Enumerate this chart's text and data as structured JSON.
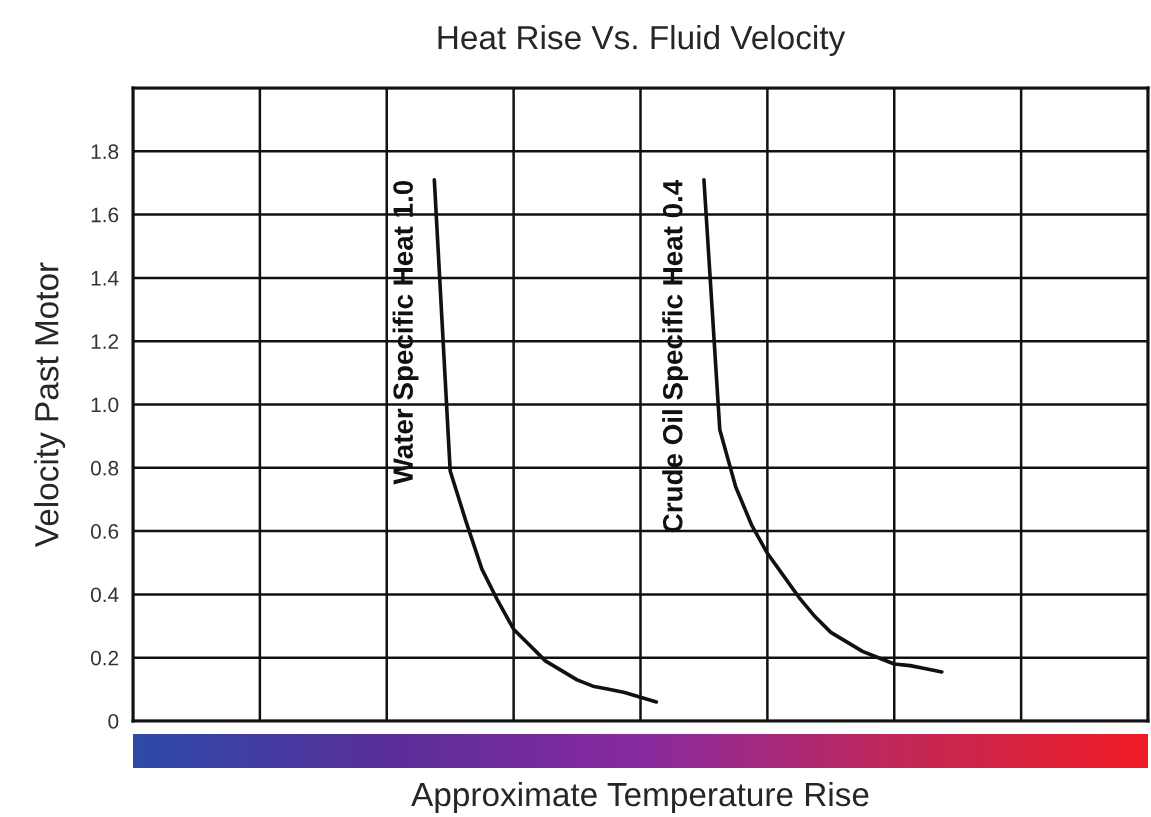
{
  "chart_data": {
    "type": "line",
    "title": "Heat Rise Vs. Fluid Velocity",
    "xlabel": "Approximate Temperature Rise",
    "ylabel": "Velocity Past Motor",
    "categories": [
      null,
      null,
      null,
      null,
      null,
      null,
      null,
      null,
      null,
      null,
      null,
      null,
      null,
      null,
      null,
      null,
      null,
      null,
      null,
      null,
      null,
      null,
      null,
      null,
      null,
      null,
      null,
      null,
      null,
      null,
      null,
      null,
      null,
      null,
      null,
      null,
      null,
      null,
      null,
      null,
      null,
      null,
      null,
      null,
      null,
      null,
      null,
      null,
      null,
      null,
      null,
      null,
      null,
      null,
      null,
      null,
      null,
      null,
      null,
      null,
      null,
      null,
      null,
      null,
      null
    ],
    "ylim": [
      0,
      2.0
    ],
    "yticks": [
      0,
      0.2,
      0.4,
      0.6,
      0.8,
      {
        "value": 1.0,
        "label": "1.0"
      },
      1.2,
      1.4,
      1.6,
      1.8,
      {
        "value": 2.0,
        "label": null
      }
    ],
    "tick_labels": "y",
    "grid": true,
    "marker": "none",
    "line_style": "solid",
    "series": [
      {
        "name": "Water Specific Heat 1.0",
        "color": "#111111",
        "values": [
          null,
          null,
          null,
          null,
          null,
          null,
          null,
          null,
          null,
          null,
          null,
          null,
          null,
          null,
          null,
          null,
          null,
          null,
          null,
          1.71,
          0.79,
          0.63,
          0.48,
          0.38,
          0.29,
          0.24,
          0.19,
          0.16,
          0.13,
          0.11,
          0.1,
          0.09,
          0.075,
          0.06,
          null,
          null,
          null,
          null,
          null,
          null,
          null,
          null,
          null,
          null,
          null,
          null,
          null,
          null,
          null,
          null,
          null,
          null,
          null,
          null,
          null,
          null,
          null,
          null,
          null,
          null,
          null,
          null,
          null,
          null,
          null
        ]
      },
      {
        "name": "Crude Oil Specific Heat 0.4",
        "color": "#111111",
        "values": [
          null,
          null,
          null,
          null,
          null,
          null,
          null,
          null,
          null,
          null,
          null,
          null,
          null,
          null,
          null,
          null,
          null,
          null,
          null,
          null,
          null,
          null,
          null,
          null,
          null,
          null,
          null,
          null,
          null,
          null,
          null,
          null,
          null,
          null,
          null,
          null,
          1.71,
          0.92,
          0.74,
          0.62,
          0.53,
          0.46,
          0.39,
          0.33,
          0.28,
          0.25,
          0.22,
          0.2,
          0.18,
          0.175,
          0.165,
          0.155,
          null,
          null,
          null,
          null,
          null,
          null,
          null,
          null,
          null,
          null,
          null,
          null,
          null
        ]
      }
    ]
  }
}
